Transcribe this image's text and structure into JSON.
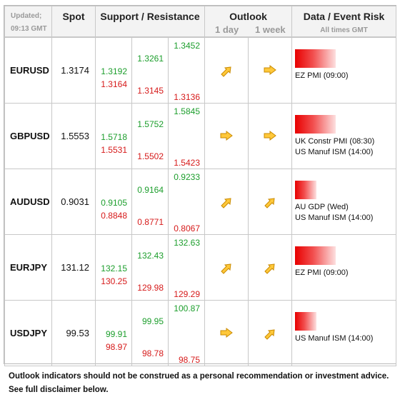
{
  "header": {
    "updated_label": "Updated;",
    "updated_time": "09:13 GMT",
    "spot": "Spot",
    "sr": "Support / Resistance",
    "outlook": "Outlook",
    "outlook_1d": "1 day",
    "outlook_1w": "1 week",
    "data": "Data / Event Risk",
    "data_sub": "All times GMT"
  },
  "rows": [
    {
      "pair": "EURUSD",
      "spot": "1.3174",
      "s1": "1.3192",
      "r1": "1.3164",
      "s2": "1.3261",
      "r2": "1.3145",
      "s3": "1.3452",
      "r3": "1.3136",
      "out1": "up-right",
      "out2": "right",
      "bar": 0.52,
      "events": [
        "EZ PMI (09:00)"
      ]
    },
    {
      "pair": "GBPUSD",
      "spot": "1.5553",
      "s1": "1.5718",
      "r1": "1.5531",
      "s2": "1.5752",
      "r2": "1.5502",
      "s3": "1.5845",
      "r3": "1.5423",
      "out1": "right",
      "out2": "right",
      "bar": 0.52,
      "events": [
        "UK Constr PMI (08:30)",
        "US Manuf ISM (14:00)"
      ]
    },
    {
      "pair": "AUDUSD",
      "spot": "0.9031",
      "s1": "0.9105",
      "r1": "0.8848",
      "s2": "0.9164",
      "r2": "0.8771",
      "s3": "0.9233",
      "r3": "0.8067",
      "out1": "up-right",
      "out2": "up-right",
      "bar": 0.27,
      "events": [
        "AU GDP (Wed)",
        "US Manuf ISM (14:00)"
      ]
    },
    {
      "pair": "EURJPY",
      "spot": "131.12",
      "s1": "132.15",
      "r1": "130.25",
      "s2": "132.43",
      "r2": "129.98",
      "s3": "132.63",
      "r3": "129.29",
      "out1": "up-right",
      "out2": "up-right",
      "bar": 0.52,
      "events": [
        "EZ PMI (09:00)"
      ]
    },
    {
      "pair": "USDJPY",
      "spot": "99.53",
      "s1": "99.91",
      "r1": "98.97",
      "s2": "99.95",
      "r2": "98.78",
      "s3": "100.87",
      "r3": "98.75",
      "out1": "right",
      "out2": "up-right",
      "bar": 0.27,
      "events": [
        "US Manuf ISM (14:00)"
      ]
    }
  ],
  "footer": {
    "line1": "Outlook indicators should not be construed as a personal recommendation or investment advice.",
    "line2": "See full disclaimer below."
  },
  "colors": {
    "support": "#1c9e2c",
    "resistance": "#d61a1a",
    "arrow_fill": "#ffc83a",
    "arrow_stroke": "#c98a00",
    "bar": "#e80000"
  }
}
